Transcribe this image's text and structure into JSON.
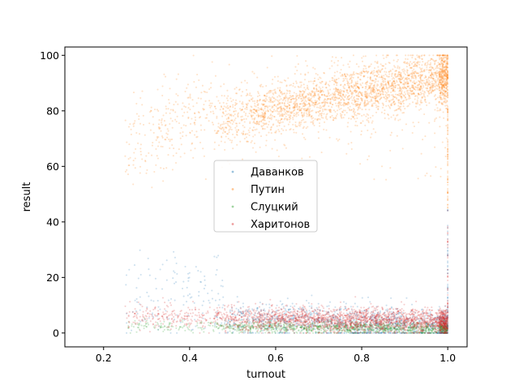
{
  "chart_data": {
    "type": "scatter",
    "title": "",
    "xlabel": "turnout",
    "ylabel": "result",
    "xlim": [
      0.11,
      1.045
    ],
    "ylim": [
      -5,
      103
    ],
    "xticks": [
      "0.2",
      "0.4",
      "0.6",
      "0.8",
      "1.0"
    ],
    "xtick_values": [
      0.2,
      0.4,
      0.6,
      0.8,
      1.0
    ],
    "yticks": [
      "0",
      "20",
      "40",
      "60",
      "80",
      "100"
    ],
    "ytick_values": [
      0,
      20,
      40,
      60,
      80,
      100
    ],
    "grid": false,
    "legend_position": "center",
    "series": [
      {
        "name": "Даванков",
        "color": "#1f77b4",
        "distribution": [
          {
            "x": 0.35,
            "y": 18,
            "note": "cluster"
          },
          {
            "x": 0.55,
            "y": 7
          },
          {
            "x": 0.75,
            "y": 4
          },
          {
            "x": 0.95,
            "y": 2
          }
        ]
      },
      {
        "name": "Путин",
        "color": "#ff7f0e",
        "distribution": [
          {
            "x": 0.3,
            "y": 65
          },
          {
            "x": 0.5,
            "y": 82
          },
          {
            "x": 0.7,
            "y": 85
          },
          {
            "x": 0.9,
            "y": 92
          },
          {
            "x": 1.0,
            "y": 100
          }
        ]
      },
      {
        "name": "Слуцкий",
        "color": "#2ca02c",
        "distribution": [
          {
            "x": 0.3,
            "y": 3
          },
          {
            "x": 0.5,
            "y": 2.5
          },
          {
            "x": 0.7,
            "y": 2
          },
          {
            "x": 0.9,
            "y": 1.5
          }
        ]
      },
      {
        "name": "Харитонов",
        "color": "#d62728",
        "distribution": [
          {
            "x": 0.3,
            "y": 7
          },
          {
            "x": 0.5,
            "y": 6
          },
          {
            "x": 0.7,
            "y": 5
          },
          {
            "x": 0.9,
            "y": 4
          }
        ]
      }
    ]
  }
}
